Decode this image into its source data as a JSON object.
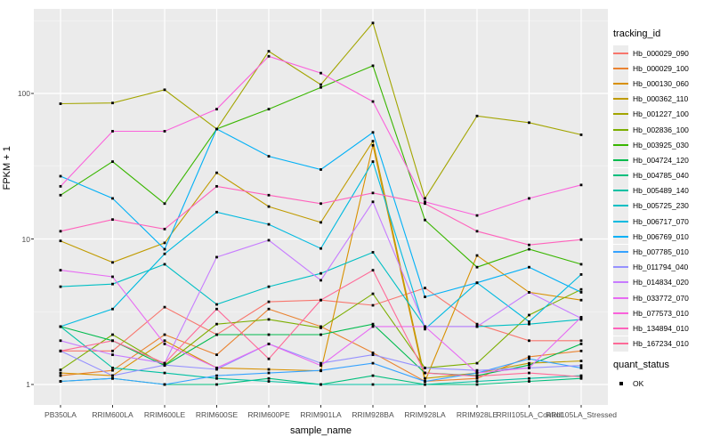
{
  "figure": {
    "background": "#ffffff",
    "panel_background": "#ebebeb",
    "gridline_color": "#ffffff",
    "tick_label_color": "#4d4d4d",
    "point_color": "#000000"
  },
  "y_axis": {
    "title": "FPKM + 1",
    "ticks": [
      {
        "label": "1",
        "value": 1
      },
      {
        "label": "10",
        "value": 10
      },
      {
        "label": "100",
        "value": 100
      }
    ],
    "minor_values": [
      3.1623,
      31.623,
      316.23
    ]
  },
  "x_axis": {
    "title": "sample_name"
  },
  "legend": {
    "tracking_title": "tracking_id",
    "quant_title": "quant_status",
    "quant_items": [
      {
        "label": "OK",
        "marker": "black-square"
      }
    ]
  },
  "chart_data": {
    "type": "line",
    "title": "",
    "xlabel": "sample_name",
    "ylabel": "FPKM + 1",
    "y_scale": "log10",
    "ylim": [
      0.72,
      380
    ],
    "grid": "on",
    "legend_position": "right",
    "categories": [
      "PB350LA",
      "RRIM600LA",
      "RRIM600LE",
      "RRIM600SE",
      "RRIM600PE",
      "RRIM901LA",
      "RRIM928BA",
      "RRIM928LA",
      "RRIM928LE",
      "RRII105LA_Control",
      "RRII105LA_Stressed"
    ],
    "series": [
      {
        "name": "Hb_000029_090",
        "color": "#F8766D",
        "values": [
          1.7,
          1.7,
          3.4,
          2.2,
          3.7,
          3.8,
          3.5,
          4.6,
          2.6,
          2.0,
          2.0
        ]
      },
      {
        "name": "Hb_000029_100",
        "color": "#EA8331",
        "values": [
          1.15,
          1.25,
          2.2,
          1.6,
          3.3,
          2.5,
          1.65,
          1.05,
          1.1,
          1.55,
          1.7
        ]
      },
      {
        "name": "Hb_000130_060",
        "color": "#D89000",
        "values": [
          1.2,
          1.15,
          2.0,
          1.3,
          1.27,
          1.24,
          44,
          1.05,
          7.7,
          4.3,
          3.8
        ]
      },
      {
        "name": "Hb_000362_110",
        "color": "#C09B00",
        "values": [
          9.7,
          6.9,
          9.4,
          28.5,
          16.7,
          13.0,
          47,
          1.1,
          1.2,
          1.4,
          1.45
        ]
      },
      {
        "name": "Hb_001227_100",
        "color": "#A3A500",
        "values": [
          85,
          86,
          106,
          57,
          195,
          115,
          305,
          19,
          70,
          63,
          52
        ]
      },
      {
        "name": "Hb_002836_100",
        "color": "#7CAE00",
        "values": [
          1.26,
          2.2,
          1.36,
          2.6,
          2.8,
          2.45,
          4.2,
          1.3,
          1.4,
          3.0,
          4.5
        ]
      },
      {
        "name": "Hb_003925_030",
        "color": "#39B600",
        "values": [
          20,
          34,
          17.5,
          57,
          78,
          110,
          155,
          13.5,
          6.4,
          8.5,
          6.7
        ]
      },
      {
        "name": "Hb_004724_120",
        "color": "#00BB4E",
        "values": [
          2.5,
          2.0,
          1.35,
          2.2,
          2.2,
          2.2,
          2.6,
          1.2,
          1.15,
          1.36,
          1.9
        ]
      },
      {
        "name": "Hb_004785_040",
        "color": "#00BF7D",
        "values": [
          1.05,
          1.1,
          1.0,
          1.0,
          1.1,
          1.0,
          1.15,
          1.0,
          1.0,
          1.05,
          1.1
        ]
      },
      {
        "name": "Hb_005489_140",
        "color": "#00C1A3",
        "values": [
          2.5,
          1.3,
          1.2,
          1.1,
          1.05,
          1.0,
          1.0,
          1.0,
          1.05,
          1.1,
          1.15
        ]
      },
      {
        "name": "Hb_005725_230",
        "color": "#00BFC4",
        "values": [
          4.7,
          4.9,
          6.7,
          3.55,
          4.7,
          5.8,
          8.1,
          2.5,
          2.5,
          2.6,
          2.8
        ]
      },
      {
        "name": "Hb_006717_070",
        "color": "#00BAE0",
        "values": [
          2.5,
          3.3,
          7.9,
          15.3,
          12.6,
          8.6,
          34,
          2.4,
          5.0,
          2.7,
          5.7
        ]
      },
      {
        "name": "Hb_006769_010",
        "color": "#00B0F6",
        "values": [
          27,
          19,
          8.5,
          57,
          37,
          30,
          54,
          4.0,
          5.0,
          6.4,
          4.3
        ]
      },
      {
        "name": "Hb_007785_010",
        "color": "#35A2FF",
        "values": [
          1.05,
          1.1,
          1.0,
          1.15,
          1.2,
          1.25,
          1.4,
          1.05,
          1.2,
          1.5,
          1.3
        ]
      },
      {
        "name": "Hb_011794_040",
        "color": "#9590FF",
        "values": [
          1.7,
          1.15,
          1.36,
          1.27,
          1.9,
          1.4,
          1.6,
          1.3,
          1.25,
          1.3,
          1.35
        ]
      },
      {
        "name": "Hb_014834_020",
        "color": "#C77CFF",
        "values": [
          2.0,
          1.6,
          1.4,
          7.5,
          9.8,
          5.2,
          18,
          2.5,
          2.5,
          4.3,
          2.85
        ]
      },
      {
        "name": "Hb_033772_070",
        "color": "#E76BF3",
        "values": [
          6.1,
          5.5,
          1.9,
          1.3,
          1.9,
          1.35,
          2.5,
          2.5,
          1.2,
          1.3,
          2.9
        ]
      },
      {
        "name": "Hb_077573_010",
        "color": "#FA62DB",
        "values": [
          23,
          55,
          55,
          78,
          180,
          138,
          88,
          18,
          14.5,
          19,
          23.5
        ]
      },
      {
        "name": "Hb_134894_010",
        "color": "#FF62BC",
        "values": [
          11.3,
          13.6,
          11.7,
          23,
          20,
          17.5,
          20.7,
          17.5,
          11.3,
          9.1,
          9.9
        ]
      },
      {
        "name": "Hb_167234_010",
        "color": "#FF6A98",
        "values": [
          1.7,
          2.0,
          1.4,
          3.3,
          1.5,
          3.8,
          6.1,
          1.2,
          1.14,
          1.2,
          1.13
        ]
      }
    ]
  }
}
